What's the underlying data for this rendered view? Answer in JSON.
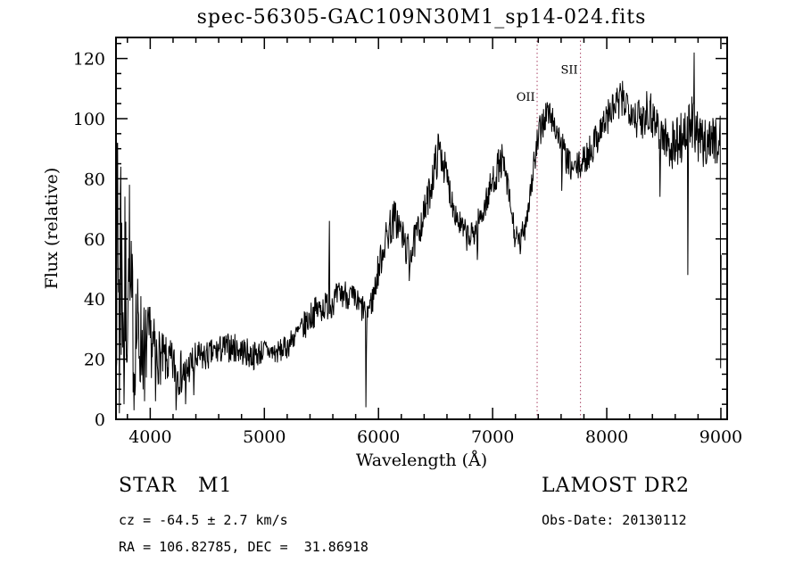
{
  "chart_data": {
    "type": "line",
    "title": "spec-56305-GAC109N30M1_sp14-024.fits",
    "xlabel": "Wavelength (Å)",
    "ylabel": "Flux (relative)",
    "xlim": [
      3700,
      9055
    ],
    "ylim": [
      0,
      127
    ],
    "x_major_ticks": [
      4000,
      5000,
      6000,
      7000,
      8000,
      9000
    ],
    "x_minor_step": 200,
    "y_major_ticks": [
      0,
      20,
      40,
      60,
      80,
      100,
      120
    ],
    "y_minor_step": 5,
    "grid": false,
    "legend": "none",
    "line_color": "#000000",
    "frame_color": "#000000",
    "annotation_color": "#aa4466",
    "noise_seed": 7,
    "sample_step": 4,
    "data_range": [
      3702,
      9002
    ],
    "envelope": [
      [
        3702,
        55,
        40
      ],
      [
        3720,
        50,
        40
      ],
      [
        3760,
        45,
        35
      ],
      [
        3800,
        40,
        30
      ],
      [
        3850,
        32,
        25
      ],
      [
        3900,
        27,
        20
      ],
      [
        3950,
        24,
        15
      ],
      [
        4000,
        26,
        12
      ],
      [
        4050,
        22,
        10
      ],
      [
        4100,
        20,
        9
      ],
      [
        4150,
        19,
        8
      ],
      [
        4200,
        18,
        8
      ],
      [
        4250,
        16,
        8
      ],
      [
        4300,
        15,
        7
      ],
      [
        4350,
        18,
        6
      ],
      [
        4400,
        20,
        6
      ],
      [
        4500,
        21,
        5
      ],
      [
        4600,
        23,
        5
      ],
      [
        4700,
        24,
        5
      ],
      [
        4800,
        23,
        5
      ],
      [
        4900,
        21,
        5
      ],
      [
        5000,
        23,
        4
      ],
      [
        5100,
        22,
        4
      ],
      [
        5200,
        24,
        4
      ],
      [
        5250,
        27,
        4
      ],
      [
        5300,
        29,
        4
      ],
      [
        5350,
        31,
        5
      ],
      [
        5400,
        34,
        5
      ],
      [
        5450,
        36,
        5
      ],
      [
        5500,
        37,
        5
      ],
      [
        5550,
        38,
        5
      ],
      [
        5600,
        39,
        5
      ],
      [
        5650,
        41,
        5
      ],
      [
        5700,
        42,
        5
      ],
      [
        5750,
        41,
        5
      ],
      [
        5800,
        39,
        5
      ],
      [
        5850,
        37,
        5
      ],
      [
        5900,
        36,
        5
      ],
      [
        5950,
        40,
        5
      ],
      [
        6000,
        50,
        6
      ],
      [
        6050,
        58,
        6
      ],
      [
        6100,
        64,
        7
      ],
      [
        6150,
        67,
        7
      ],
      [
        6200,
        62,
        6
      ],
      [
        6250,
        56,
        6
      ],
      [
        6300,
        57,
        6
      ],
      [
        6350,
        63,
        6
      ],
      [
        6400,
        68,
        6
      ],
      [
        6450,
        76,
        6
      ],
      [
        6500,
        85,
        7
      ],
      [
        6530,
        90,
        7
      ],
      [
        6560,
        87,
        6
      ],
      [
        6600,
        80,
        6
      ],
      [
        6650,
        72,
        5
      ],
      [
        6700,
        66,
        5
      ],
      [
        6750,
        62,
        5
      ],
      [
        6800,
        60,
        5
      ],
      [
        6850,
        63,
        5
      ],
      [
        6900,
        68,
        5
      ],
      [
        6950,
        73,
        5
      ],
      [
        7000,
        79,
        6
      ],
      [
        7050,
        84,
        6
      ],
      [
        7080,
        86,
        6
      ],
      [
        7120,
        80,
        5
      ],
      [
        7160,
        70,
        5
      ],
      [
        7200,
        60,
        5
      ],
      [
        7240,
        58,
        5
      ],
      [
        7280,
        64,
        5
      ],
      [
        7320,
        73,
        5
      ],
      [
        7360,
        84,
        6
      ],
      [
        7400,
        93,
        6
      ],
      [
        7440,
        99,
        6
      ],
      [
        7480,
        102,
        6
      ],
      [
        7520,
        100,
        5
      ],
      [
        7560,
        96,
        5
      ],
      [
        7600,
        92,
        5
      ],
      [
        7650,
        86,
        5
      ],
      [
        7700,
        83,
        5
      ],
      [
        7750,
        84,
        5
      ],
      [
        7800,
        86,
        5
      ],
      [
        7850,
        89,
        6
      ],
      [
        7900,
        93,
        6
      ],
      [
        7950,
        97,
        6
      ],
      [
        8000,
        100,
        6
      ],
      [
        8050,
        103,
        6
      ],
      [
        8100,
        105,
        7
      ],
      [
        8150,
        106,
        7
      ],
      [
        8200,
        105,
        7
      ],
      [
        8250,
        101,
        7
      ],
      [
        8300,
        99,
        8
      ],
      [
        8350,
        104,
        8
      ],
      [
        8400,
        101,
        8
      ],
      [
        8450,
        98,
        8
      ],
      [
        8500,
        94,
        8
      ],
      [
        8550,
        91,
        8
      ],
      [
        8600,
        92,
        9
      ],
      [
        8650,
        94,
        9
      ],
      [
        8700,
        96,
        9
      ],
      [
        8750,
        98,
        10
      ],
      [
        8800,
        93,
        9
      ],
      [
        8850,
        91,
        8
      ],
      [
        8900,
        94,
        8
      ],
      [
        8950,
        93,
        8
      ],
      [
        9002,
        92,
        8
      ]
    ],
    "features": {
      "spikes": [
        {
          "x": 3716,
          "y": 92
        },
        {
          "x": 3744,
          "y": 84
        },
        {
          "x": 3820,
          "y": 78
        },
        {
          "x": 5572,
          "y": 66
        },
        {
          "x": 8768,
          "y": 122
        },
        {
          "x": 8996,
          "y": 101
        }
      ],
      "dips": [
        {
          "x": 3730,
          "y": 2
        },
        {
          "x": 3770,
          "y": 5
        },
        {
          "x": 3858,
          "y": 3
        },
        {
          "x": 3950,
          "y": 6
        },
        {
          "x": 4046,
          "y": 6
        },
        {
          "x": 4226,
          "y": 3
        },
        {
          "x": 4310,
          "y": 5
        },
        {
          "x": 4384,
          "y": 8
        },
        {
          "x": 5890,
          "y": 4
        },
        {
          "x": 6270,
          "y": 46
        },
        {
          "x": 6868,
          "y": 53
        },
        {
          "x": 7605,
          "y": 76
        },
        {
          "x": 8468,
          "y": 74
        },
        {
          "x": 8712,
          "y": 48
        },
        {
          "x": 9000,
          "y": 17
        }
      ]
    },
    "annotations": [
      {
        "label": "OII",
        "line_x": 7390,
        "label_x": 7290,
        "label_y": 106
      },
      {
        "label": "SII",
        "line_x": 7770,
        "label_x": 7672,
        "label_y": 115
      }
    ]
  },
  "footer": {
    "left_title": "STAR   M1",
    "right_title": "LAMOST DR2",
    "cz_line": "cz = -64.5 ± 2.7 km/s",
    "obs_line": "Obs-Date: 20130112",
    "coord_line": "RA = 106.82785, DEC =  31.86918"
  }
}
